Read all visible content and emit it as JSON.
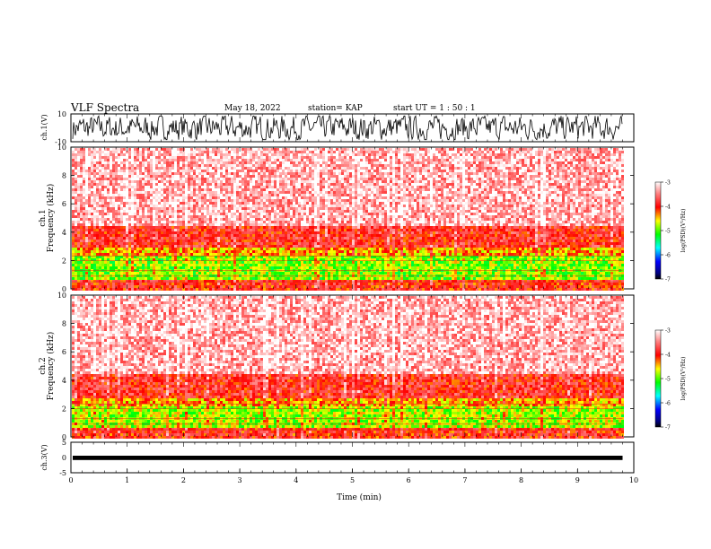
{
  "header": {
    "title": "VLF Spectra",
    "date": "May 18, 2022",
    "station": "station= KAP",
    "start": "start  UT =   1 : 50 : 1"
  },
  "chart_data": [
    {
      "type": "line",
      "name": "ch1-waveform",
      "ylabel": "ch.1(V)",
      "ylim": [
        -10,
        10
      ],
      "y_ticks": [
        "10",
        "-10"
      ],
      "xlim": [
        0,
        10
      ],
      "x_units": "min",
      "description_level": "broadband noise spanning most of range"
    },
    {
      "type": "heatmap",
      "name": "ch1-spectrogram",
      "ylabel": "ch.1\nFrequency  (kHz)",
      "ylim": [
        0,
        10
      ],
      "y_ticks": [
        "0",
        "2",
        "4",
        "6",
        "8",
        "10"
      ],
      "xlim": [
        0,
        9.8
      ],
      "colorbar": {
        "label": "log(PSD)(V²/Hz)",
        "range": [
          -7,
          -3
        ],
        "ticks": [
          "-3",
          "-4",
          "-5",
          "-6",
          "-7"
        ]
      },
      "bands_khz": [
        {
          "from": 0,
          "to": 0.8,
          "level": -4.0
        },
        {
          "from": 0.8,
          "to": 2.4,
          "level": -4.9
        },
        {
          "from": 2.4,
          "to": 3.0,
          "level": -4.4
        },
        {
          "from": 3.0,
          "to": 4.5,
          "level": -3.9
        },
        {
          "from": 4.5,
          "to": 10,
          "level": -3.3
        }
      ]
    },
    {
      "type": "heatmap",
      "name": "ch2-spectrogram",
      "ylabel": "ch.2\nFrequency  (kHz)",
      "ylim": [
        0,
        10
      ],
      "y_ticks": [
        "0",
        "2",
        "4",
        "6",
        "8",
        "10"
      ],
      "xlim": [
        0,
        9.8
      ],
      "colorbar": {
        "label": "log(PSD)(V²/Hz)",
        "range": [
          -7,
          -3
        ],
        "ticks": [
          "-3",
          "-4",
          "-5",
          "-6",
          "-7"
        ]
      },
      "bands_khz": [
        {
          "from": 0,
          "to": 0.7,
          "level": -4.0
        },
        {
          "from": 0.7,
          "to": 2.2,
          "level": -4.8
        },
        {
          "from": 2.2,
          "to": 2.9,
          "level": -4.4
        },
        {
          "from": 2.9,
          "to": 4.5,
          "level": -3.9
        },
        {
          "from": 4.5,
          "to": 10,
          "level": -3.3
        }
      ]
    },
    {
      "type": "line",
      "name": "ch3-waveform",
      "ylabel": "ch.3(V)",
      "ylim": [
        -5,
        5
      ],
      "y_ticks": [
        "5",
        "0",
        "-5"
      ],
      "level_band": [
        -0.8,
        0.6
      ],
      "xlim": [
        0,
        10
      ],
      "xlabel": "Time  (min)",
      "x_ticks": [
        "0",
        "1",
        "2",
        "3",
        "4",
        "5",
        "6",
        "7",
        "8",
        "9",
        "10"
      ]
    }
  ]
}
